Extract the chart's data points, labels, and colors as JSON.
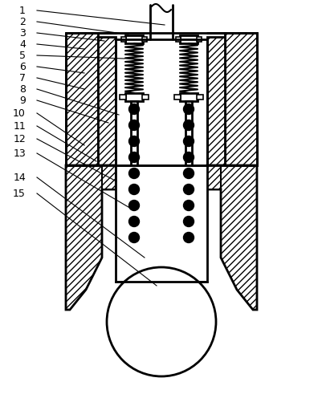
{
  "line_color": "#000000",
  "bg_color": "#ffffff",
  "lw": 1.5,
  "label_data": [
    [
      "1",
      205,
      460,
      32,
      478
    ],
    [
      "2",
      160,
      448,
      32,
      464
    ],
    [
      "3",
      130,
      440,
      32,
      450
    ],
    [
      "4",
      105,
      430,
      32,
      436
    ],
    [
      "5",
      155,
      418,
      32,
      422
    ],
    [
      "6",
      105,
      400,
      32,
      408
    ],
    [
      "7",
      105,
      380,
      32,
      394
    ],
    [
      "8",
      148,
      348,
      32,
      380
    ],
    [
      "9",
      135,
      338,
      32,
      366
    ],
    [
      "10",
      105,
      310,
      32,
      350
    ],
    [
      "11",
      120,
      290,
      32,
      334
    ],
    [
      "12",
      145,
      265,
      32,
      318
    ],
    [
      "13",
      165,
      230,
      32,
      300
    ],
    [
      "14",
      180,
      170,
      32,
      270
    ],
    [
      "15",
      195,
      135,
      32,
      250
    ]
  ]
}
